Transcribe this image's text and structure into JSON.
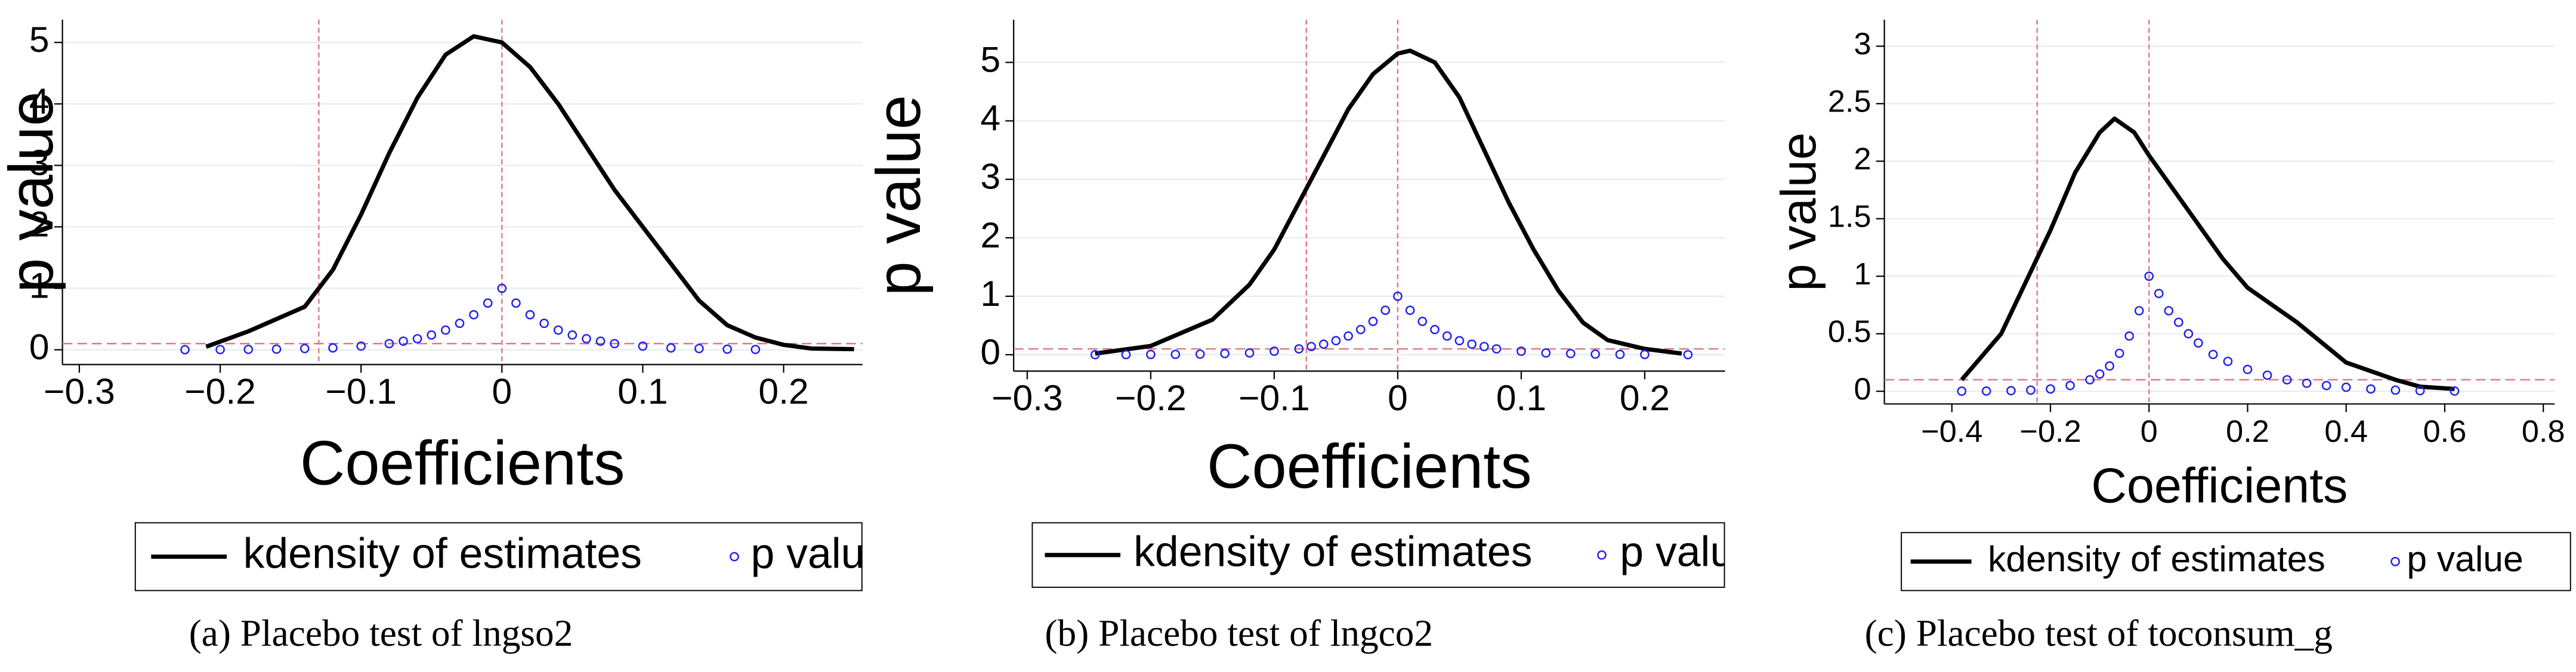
{
  "chart_data": [
    {
      "type": "kdensity-scatter",
      "caption": "(a) Placebo test of lngso2",
      "xlabel": "Coefficients",
      "ylabel": "p value",
      "xlim": [
        -0.312,
        0.256
      ],
      "ylim": [
        -0.24,
        5.37
      ],
      "xticks": [
        {
          "value": -0.3,
          "label": "−0.3"
        },
        {
          "value": -0.2,
          "label": "−0.2"
        },
        {
          "value": -0.1,
          "label": "−0.1"
        },
        0,
        0.1,
        0.2
      ],
      "yticks": [
        0,
        1,
        2,
        3,
        4,
        5
      ],
      "grid": true,
      "vlines": [
        -0.13,
        0
      ],
      "hline": 0.1,
      "ref_color": "#e07a84",
      "series": [
        {
          "name": "kdensity of estimates",
          "color": "#000000",
          "kind": "line",
          "x": [
            -0.21,
            -0.18,
            -0.16,
            -0.14,
            -0.12,
            -0.1,
            -0.08,
            -0.06,
            -0.04,
            -0.02,
            0,
            0.02,
            0.04,
            0.06,
            0.08,
            0.1,
            0.12,
            0.14,
            0.16,
            0.18,
            0.2,
            0.22,
            0.25
          ],
          "values": [
            0.05,
            0.3,
            0.5,
            0.7,
            1.3,
            2.2,
            3.2,
            4.1,
            4.8,
            5.1,
            5.0,
            4.6,
            4.0,
            3.3,
            2.6,
            2.0,
            1.4,
            0.8,
            0.4,
            0.2,
            0.08,
            0.02,
            0.01
          ]
        },
        {
          "name": "p value",
          "color": "#2020f0",
          "kind": "scatter",
          "x": [
            -0.225,
            -0.2,
            -0.18,
            -0.16,
            -0.14,
            -0.12,
            -0.1,
            -0.08,
            -0.07,
            -0.06,
            -0.05,
            -0.04,
            -0.03,
            -0.02,
            -0.01,
            0,
            0.01,
            0.02,
            0.03,
            0.04,
            0.05,
            0.06,
            0.07,
            0.08,
            0.1,
            0.12,
            0.14,
            0.16,
            0.18
          ],
          "values": [
            0.001,
            0.003,
            0.006,
            0.01,
            0.02,
            0.03,
            0.06,
            0.1,
            0.14,
            0.18,
            0.24,
            0.32,
            0.43,
            0.57,
            0.76,
            1,
            0.76,
            0.57,
            0.43,
            0.32,
            0.24,
            0.18,
            0.14,
            0.1,
            0.06,
            0.03,
            0.02,
            0.01,
            0.005
          ]
        }
      ]
    },
    {
      "type": "kdensity-scatter",
      "caption": "(b) Placebo test of lngco2",
      "xlabel": "Coefficients",
      "ylabel": "p value",
      "xlim": [
        -0.311,
        0.265
      ],
      "ylim": [
        -0.28,
        5.73
      ],
      "xticks": [
        {
          "value": -0.3,
          "label": "−0.3"
        },
        {
          "value": -0.2,
          "label": "−0.2"
        },
        {
          "value": -0.1,
          "label": "−0.1"
        },
        0,
        0.1,
        0.2
      ],
      "yticks": [
        0,
        1,
        2,
        3,
        4,
        5
      ],
      "grid": true,
      "vlines": [
        -0.074,
        0
      ],
      "hline": 0.1,
      "ref_color": "#e07a84",
      "series": [
        {
          "name": "kdensity of estimates",
          "color": "#000000",
          "kind": "line",
          "x": [
            -0.245,
            -0.2,
            -0.15,
            -0.12,
            -0.1,
            -0.08,
            -0.06,
            -0.04,
            -0.02,
            0,
            0.01,
            0.03,
            0.05,
            0.07,
            0.09,
            0.11,
            0.13,
            0.15,
            0.17,
            0.2,
            0.23
          ],
          "values": [
            0.02,
            0.15,
            0.6,
            1.2,
            1.8,
            2.6,
            3.4,
            4.2,
            4.8,
            5.15,
            5.2,
            5.0,
            4.4,
            3.5,
            2.6,
            1.8,
            1.1,
            0.55,
            0.25,
            0.1,
            0.02
          ]
        },
        {
          "name": "p value",
          "color": "#2020f0",
          "kind": "scatter",
          "x": [
            -0.245,
            -0.22,
            -0.2,
            -0.18,
            -0.16,
            -0.14,
            -0.12,
            -0.1,
            -0.08,
            -0.07,
            -0.06,
            -0.05,
            -0.04,
            -0.03,
            -0.02,
            -0.01,
            0,
            0.01,
            0.02,
            0.03,
            0.04,
            0.05,
            0.06,
            0.07,
            0.08,
            0.1,
            0.12,
            0.14,
            0.16,
            0.18,
            0.2,
            0.235
          ],
          "values": [
            0.001,
            0.002,
            0.004,
            0.006,
            0.01,
            0.02,
            0.03,
            0.06,
            0.1,
            0.14,
            0.18,
            0.24,
            0.32,
            0.43,
            0.57,
            0.76,
            1,
            0.76,
            0.57,
            0.43,
            0.32,
            0.24,
            0.18,
            0.14,
            0.1,
            0.06,
            0.03,
            0.02,
            0.01,
            0.006,
            0.004,
            0.001
          ]
        }
      ]
    },
    {
      "type": "kdensity-scatter",
      "caption": "(c) Placebo test of toconsum_g",
      "xlabel": "Coefficients",
      "ylabel": "p value",
      "xlim": [
        -0.537,
        0.823
      ],
      "ylim": [
        -0.11,
        3.23
      ],
      "xticks": [
        {
          "value": -0.4,
          "label": "−0.4"
        },
        {
          "value": -0.2,
          "label": "−0.2"
        },
        0,
        0.2,
        0.4,
        0.6,
        0.8
      ],
      "yticks": [
        0,
        0.5,
        1,
        1.5,
        2,
        2.5,
        3
      ],
      "grid": true,
      "vlines": [
        -0.227,
        0
      ],
      "hline": 0.1,
      "ref_color": "#e07a84",
      "series": [
        {
          "name": "kdensity of estimates",
          "color": "#000000",
          "kind": "line",
          "x": [
            -0.38,
            -0.3,
            -0.2,
            -0.15,
            -0.1,
            -0.07,
            -0.03,
            0,
            0.05,
            0.1,
            0.15,
            0.2,
            0.25,
            0.3,
            0.4,
            0.5,
            0.55,
            0.62
          ],
          "values": [
            0.1,
            0.5,
            1.4,
            1.9,
            2.25,
            2.37,
            2.25,
            2.05,
            1.75,
            1.45,
            1.15,
            0.9,
            0.75,
            0.6,
            0.25,
            0.1,
            0.04,
            0.02
          ]
        },
        {
          "name": "p value",
          "color": "#2020f0",
          "kind": "scatter",
          "x": [
            -0.38,
            -0.33,
            -0.28,
            -0.24,
            -0.2,
            -0.16,
            -0.12,
            -0.1,
            -0.08,
            -0.06,
            -0.04,
            -0.02,
            0,
            0.02,
            0.04,
            0.06,
            0.08,
            0.1,
            0.13,
            0.16,
            0.2,
            0.24,
            0.28,
            0.32,
            0.36,
            0.4,
            0.45,
            0.5,
            0.55,
            0.62
          ],
          "values": [
            0.001,
            0.002,
            0.005,
            0.01,
            0.02,
            0.05,
            0.1,
            0.15,
            0.22,
            0.33,
            0.48,
            0.7,
            1,
            0.85,
            0.7,
            0.6,
            0.5,
            0.42,
            0.32,
            0.26,
            0.19,
            0.14,
            0.1,
            0.07,
            0.05,
            0.035,
            0.02,
            0.01,
            0.005,
            0.002
          ]
        }
      ]
    }
  ]
}
